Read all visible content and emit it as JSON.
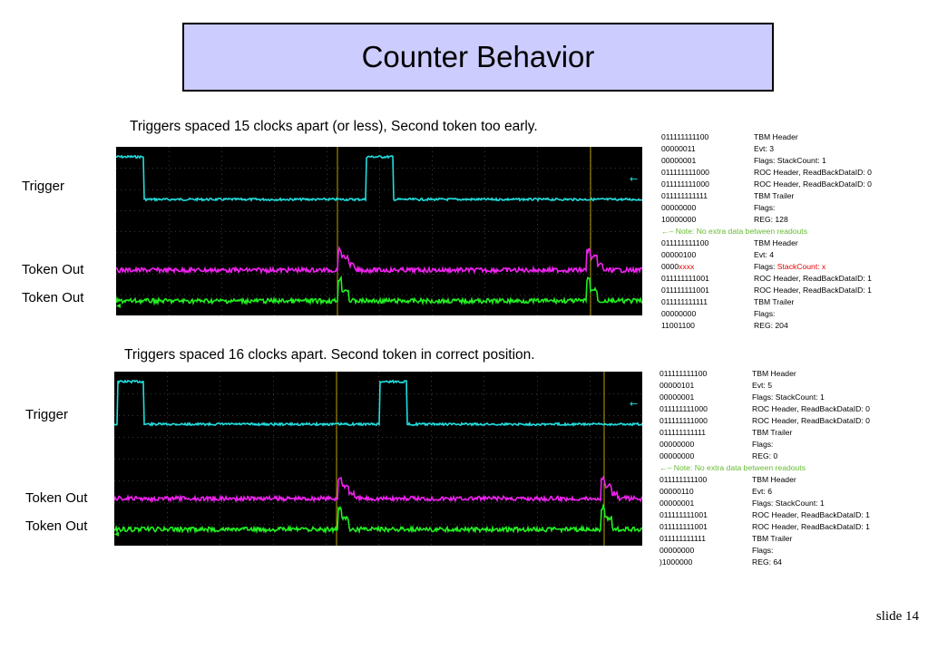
{
  "title": "Counter Behavior",
  "slide_label": "slide 14",
  "colors": {
    "trigger": "#22dddd",
    "token1": "#ee22ee",
    "token2": "#22ee22",
    "note": "#66bb33",
    "highlight": "#e60000",
    "title_bg": "#ccccff"
  },
  "panels": [
    {
      "caption": "Triggers spaced 15 clocks apart (or less), Second token too early.",
      "labels": {
        "trigger": "Trigger",
        "token_a": "Token Out",
        "token_b": "Token Out"
      },
      "readout": [
        {
          "bits": "011111111100",
          "desc": "TBM Header"
        },
        {
          "bits": "00000011",
          "desc": "Evt: 3"
        },
        {
          "bits": "00000001",
          "desc": "Flags: StackCount: 1"
        },
        {
          "bits": "011111111000",
          "desc": "ROC Header, ReadBackDataID: 0"
        },
        {
          "bits": "011111111000",
          "desc": "ROC Header, ReadBackDataID: 0"
        },
        {
          "bits": "011111111111",
          "desc": "TBM Trailer"
        },
        {
          "bits": "00000000",
          "desc": "Flags:"
        },
        {
          "bits": "10000000",
          "desc": "REG: 128"
        },
        {
          "note": "←– Note: No extra data between readouts"
        },
        {
          "bits": "011111111100",
          "desc": "TBM Header"
        },
        {
          "bits": "00000100",
          "desc": "Evt: 4"
        },
        {
          "bits": "0000",
          "bits_red": "xxxx",
          "desc": "Flags: ",
          "desc_red": "StackCount: x"
        },
        {
          "bits": "011111111001",
          "desc": "ROC Header, ReadBackDataID: 1"
        },
        {
          "bits": "011111111001",
          "desc": "ROC Header, ReadBackDataID: 1"
        },
        {
          "bits": "011111111111",
          "desc": "TBM Trailer"
        },
        {
          "bits": "00000000",
          "desc": "Flags:"
        },
        {
          "bits": "11001100",
          "desc": "REG: 204"
        }
      ]
    },
    {
      "caption": "Triggers spaced 16 clocks apart. Second token in correct position.",
      "labels": {
        "trigger": "Trigger",
        "token_a": "Token Out",
        "token_b": "Token Out"
      },
      "readout": [
        {
          "bits": "011111111100",
          "desc": "TBM Header"
        },
        {
          "bits": "00000101",
          "desc": "Evt: 5"
        },
        {
          "bits": "00000001",
          "desc": "Flags: StackCount: 1"
        },
        {
          "bits": "011111111000",
          "desc": "ROC Header, ReadBackDataID: 0"
        },
        {
          "bits": "011111111000",
          "desc": "ROC Header, ReadBackDataID: 0"
        },
        {
          "bits": "011111111111",
          "desc": "TBM Trailer"
        },
        {
          "bits": "00000000",
          "desc": "Flags:"
        },
        {
          "bits": "00000000",
          "desc": "REG: 0"
        },
        {
          "note": "←– Note: No extra data between readouts"
        },
        {
          "bits": "011111111100",
          "desc": "TBM Header"
        },
        {
          "bits": "00000110",
          "desc": "Evt: 6"
        },
        {
          "bits": "00000001",
          "desc": "Flags: StackCount: 1"
        },
        {
          "bits": "011111111001",
          "desc": "ROC Header, ReadBackDataID: 1"
        },
        {
          "bits": "011111111001",
          "desc": "ROC Header, ReadBackDataID: 1"
        },
        {
          "bits": "011111111111",
          "desc": "TBM Trailer"
        },
        {
          "bits": "00000000",
          "desc": "Flags:"
        },
        {
          "bits": ")1000000",
          "desc": "REG: 64"
        }
      ]
    }
  ]
}
